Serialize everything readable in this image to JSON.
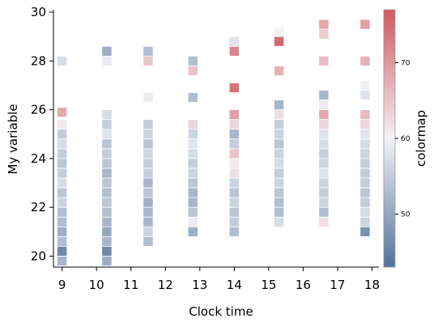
{
  "chart_data": {
    "type": "heatmap",
    "title": "",
    "xlabel": "Clock time",
    "ylabel": "My variable",
    "xlim": [
      8.75,
      18.2
    ],
    "ylim": [
      19.55,
      30.1
    ],
    "x_ticks": [
      "9",
      "10",
      "11",
      "12",
      "13",
      "14",
      "15",
      "16",
      "17",
      "18"
    ],
    "y_ticks": [
      "20",
      "22",
      "24",
      "26",
      "28",
      "30"
    ],
    "cell_width": 0.27,
    "cell_height": 0.37,
    "colorbar": {
      "label": "colormap",
      "range": [
        43,
        77
      ],
      "ticks": [
        "50",
        "60",
        "70"
      ],
      "colors": [
        "#52739c",
        "#f2f2f6",
        "#d4565e"
      ]
    },
    "grid": false,
    "columns": [
      {
        "x": 9.0,
        "cells": [
          [
            28.0,
            57
          ],
          [
            25.9,
            68
          ],
          [
            25.4,
            61
          ],
          [
            25.0,
            55
          ],
          [
            24.6,
            57
          ],
          [
            24.2,
            55
          ],
          [
            23.8,
            54
          ],
          [
            23.4,
            55
          ],
          [
            23.0,
            57
          ],
          [
            22.6,
            54
          ],
          [
            22.2,
            56
          ],
          [
            21.8,
            53
          ],
          [
            21.4,
            53
          ],
          [
            21.0,
            51
          ],
          [
            20.6,
            53
          ],
          [
            20.2,
            46
          ],
          [
            19.8,
            52
          ]
        ]
      },
      {
        "x": 10.3,
        "cells": [
          [
            28.4,
            51
          ],
          [
            28.0,
            59
          ],
          [
            25.8,
            57
          ],
          [
            25.4,
            55
          ],
          [
            25.0,
            58
          ],
          [
            24.6,
            54
          ],
          [
            24.2,
            55
          ],
          [
            23.8,
            54
          ],
          [
            23.4,
            52
          ],
          [
            23.0,
            54
          ],
          [
            22.6,
            53
          ],
          [
            22.2,
            54
          ],
          [
            21.8,
            53
          ],
          [
            21.4,
            52
          ],
          [
            21.0,
            50
          ],
          [
            20.6,
            52
          ],
          [
            20.2,
            46
          ],
          [
            19.8,
            51
          ]
        ]
      },
      {
        "x": 11.5,
        "cells": [
          [
            28.4,
            53
          ],
          [
            28.0,
            65
          ],
          [
            26.5,
            59
          ],
          [
            25.4,
            55
          ],
          [
            25.0,
            56
          ],
          [
            24.6,
            54
          ],
          [
            24.2,
            56
          ],
          [
            23.8,
            55
          ],
          [
            23.4,
            55
          ],
          [
            23.0,
            52
          ],
          [
            22.6,
            54
          ],
          [
            22.2,
            51
          ],
          [
            21.8,
            52
          ],
          [
            21.4,
            52
          ],
          [
            21.0,
            56
          ],
          [
            20.6,
            53
          ]
        ]
      },
      {
        "x": 12.8,
        "cells": [
          [
            28.0,
            53
          ],
          [
            27.6,
            65
          ],
          [
            26.5,
            53
          ],
          [
            25.4,
            63
          ],
          [
            25.0,
            56
          ],
          [
            24.6,
            58
          ],
          [
            24.2,
            57
          ],
          [
            23.8,
            55
          ],
          [
            23.4,
            56
          ],
          [
            23.0,
            54
          ],
          [
            22.6,
            52
          ],
          [
            22.2,
            52
          ],
          [
            21.8,
            54
          ],
          [
            21.4,
            59
          ],
          [
            21.0,
            51
          ]
        ]
      },
      {
        "x": 14.0,
        "cells": [
          [
            28.8,
            58
          ],
          [
            28.4,
            72
          ],
          [
            26.9,
            74
          ],
          [
            25.8,
            69
          ],
          [
            25.4,
            63
          ],
          [
            25.0,
            52
          ],
          [
            24.6,
            55
          ],
          [
            24.2,
            65
          ],
          [
            23.8,
            61
          ],
          [
            23.4,
            62
          ],
          [
            23.0,
            56
          ],
          [
            22.6,
            54
          ],
          [
            22.2,
            56
          ],
          [
            21.8,
            54
          ],
          [
            21.4,
            55
          ],
          [
            21.0,
            53
          ]
        ]
      },
      {
        "x": 15.3,
        "cells": [
          [
            29.2,
            60
          ],
          [
            28.8,
            75
          ],
          [
            27.6,
            67
          ],
          [
            26.2,
            52
          ],
          [
            25.8,
            62
          ],
          [
            25.4,
            55
          ],
          [
            25.0,
            56
          ],
          [
            24.6,
            54
          ],
          [
            24.2,
            56
          ],
          [
            23.8,
            57
          ],
          [
            23.4,
            55
          ],
          [
            23.0,
            56
          ],
          [
            22.6,
            54
          ],
          [
            22.2,
            53
          ],
          [
            21.8,
            53
          ],
          [
            21.4,
            57
          ]
        ]
      },
      {
        "x": 16.6,
        "cells": [
          [
            29.5,
            68
          ],
          [
            29.1,
            64
          ],
          [
            28.0,
            66
          ],
          [
            26.6,
            52
          ],
          [
            26.2,
            61
          ],
          [
            25.8,
            68
          ],
          [
            25.4,
            63
          ],
          [
            25.0,
            58
          ],
          [
            24.6,
            57
          ],
          [
            24.2,
            55
          ],
          [
            23.8,
            56
          ],
          [
            23.4,
            58
          ],
          [
            23.0,
            56
          ],
          [
            22.6,
            55
          ],
          [
            22.2,
            56
          ],
          [
            21.8,
            53
          ],
          [
            21.4,
            62
          ]
        ]
      },
      {
        "x": 17.8,
        "cells": [
          [
            29.5,
            69
          ],
          [
            28.0,
            67
          ],
          [
            27.0,
            60
          ],
          [
            26.6,
            58
          ],
          [
            25.8,
            66
          ],
          [
            25.4,
            63
          ],
          [
            25.0,
            58
          ],
          [
            24.6,
            57
          ],
          [
            24.2,
            56
          ],
          [
            23.8,
            55
          ],
          [
            23.4,
            55
          ],
          [
            23.0,
            55
          ],
          [
            22.6,
            54
          ],
          [
            22.2,
            55
          ],
          [
            21.8,
            57
          ],
          [
            21.4,
            56
          ],
          [
            21.0,
            47
          ]
        ]
      }
    ]
  }
}
